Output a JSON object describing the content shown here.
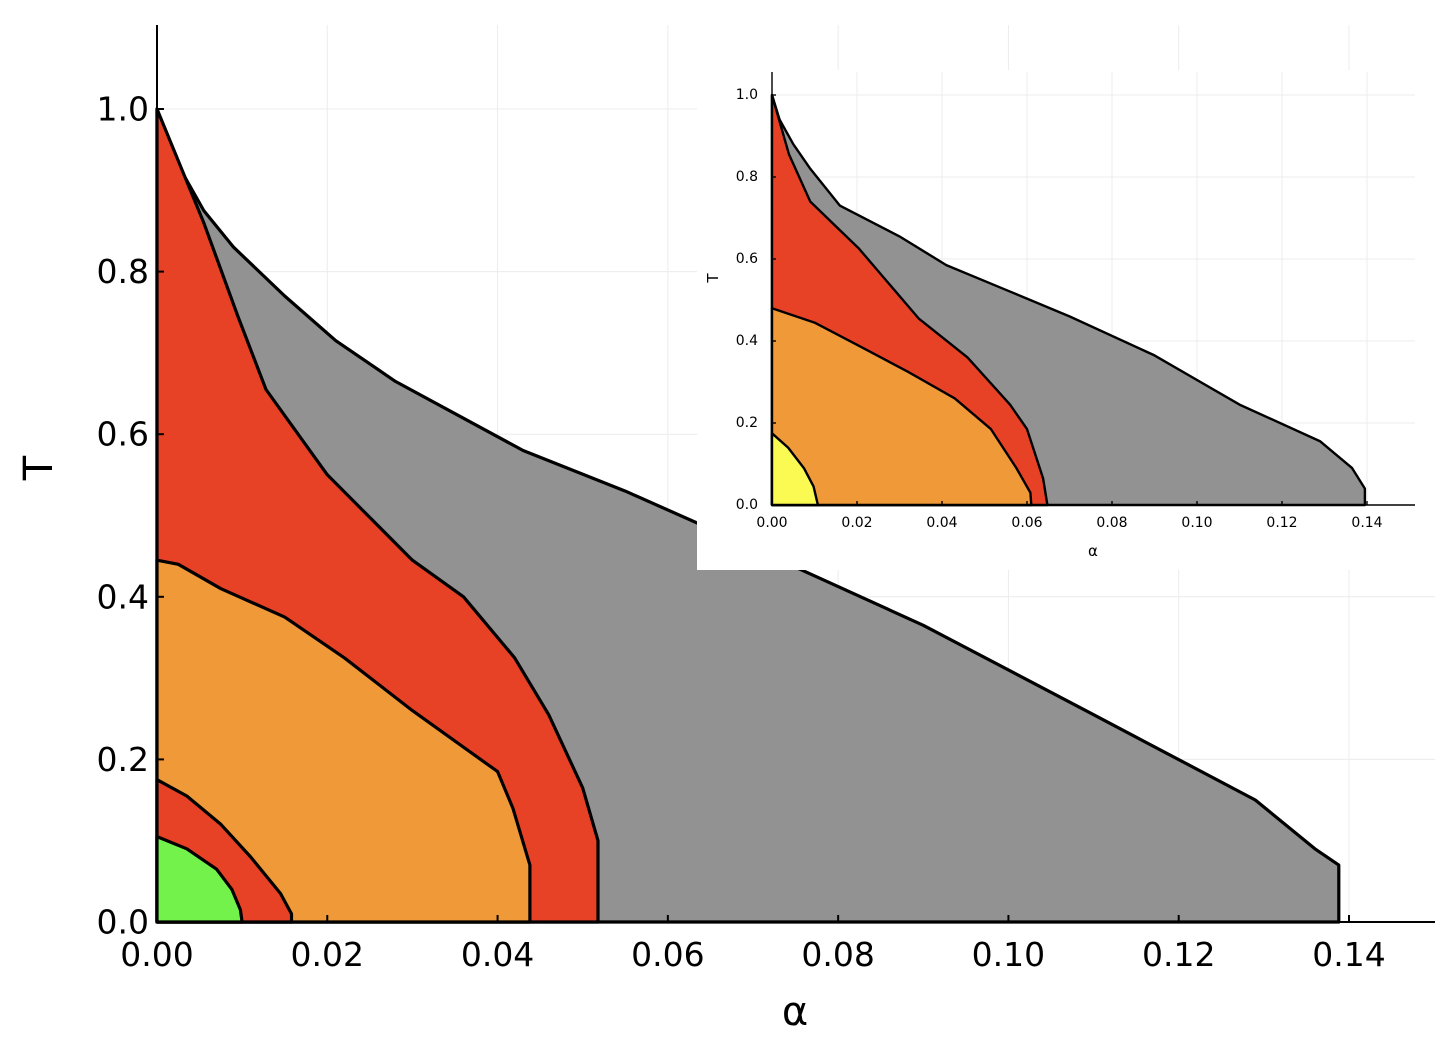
{
  "colors": {
    "gray": "#929292",
    "red": "#e84226",
    "orange": "#ef9939",
    "green": "#72f24a",
    "yellow": "#fafa52",
    "grid": "#ececec",
    "outline": "#000000"
  },
  "chart_data": [
    {
      "id": "main",
      "type": "area",
      "xlabel": "α",
      "ylabel": "T",
      "xlim": [
        0.0,
        0.15
      ],
      "ylim": [
        0.0,
        1.1
      ],
      "xticks": [
        0.0,
        0.02,
        0.04,
        0.06,
        0.08,
        0.1,
        0.12,
        0.14
      ],
      "xtick_labels": [
        "0.00",
        "0.02",
        "0.04",
        "0.06",
        "0.08",
        "0.10",
        "0.12",
        "0.14"
      ],
      "yticks": [
        0.0,
        0.2,
        0.4,
        0.6,
        0.8,
        1.0
      ],
      "ytick_labels": [
        "0.0",
        "0.2",
        "0.4",
        "0.6",
        "0.8",
        "1.0"
      ],
      "grid": true,
      "regions": [
        {
          "name": "gray",
          "color_key": "gray",
          "points": [
            [
              0.0,
              0.0
            ],
            [
              0.0,
              1.0
            ],
            [
              0.002,
              0.94
            ],
            [
              0.0055,
              0.875
            ],
            [
              0.009,
              0.83
            ],
            [
              0.015,
              0.77
            ],
            [
              0.021,
              0.715
            ],
            [
              0.028,
              0.665
            ],
            [
              0.043,
              0.58
            ],
            [
              0.055,
              0.53
            ],
            [
              0.069,
              0.465
            ],
            [
              0.09,
              0.365
            ],
            [
              0.11,
              0.255
            ],
            [
              0.129,
              0.15
            ],
            [
              0.136,
              0.09
            ],
            [
              0.1388,
              0.07
            ],
            [
              0.1388,
              0.0
            ]
          ]
        },
        {
          "name": "red-outer",
          "color_key": "red",
          "points": [
            [
              0.0,
              0.0
            ],
            [
              0.0,
              1.0
            ],
            [
              0.0055,
              0.86
            ],
            [
              0.0095,
              0.745
            ],
            [
              0.0128,
              0.655
            ],
            [
              0.02,
              0.55
            ],
            [
              0.03,
              0.445
            ],
            [
              0.036,
              0.4
            ],
            [
              0.042,
              0.325
            ],
            [
              0.046,
              0.255
            ],
            [
              0.05,
              0.165
            ],
            [
              0.0518,
              0.1
            ],
            [
              0.0518,
              0.0
            ]
          ]
        },
        {
          "name": "orange",
          "color_key": "orange",
          "points": [
            [
              0.0,
              0.0
            ],
            [
              0.0,
              0.445
            ],
            [
              0.0025,
              0.44
            ],
            [
              0.0075,
              0.41
            ],
            [
              0.015,
              0.375
            ],
            [
              0.022,
              0.325
            ],
            [
              0.03,
              0.26
            ],
            [
              0.04,
              0.185
            ],
            [
              0.0418,
              0.14
            ],
            [
              0.0438,
              0.07
            ],
            [
              0.0438,
              0.0
            ]
          ]
        },
        {
          "name": "red-inner",
          "color_key": "red",
          "points": [
            [
              0.0,
              0.0
            ],
            [
              0.0,
              0.175
            ],
            [
              0.0035,
              0.155
            ],
            [
              0.0075,
              0.12
            ],
            [
              0.011,
              0.08
            ],
            [
              0.0145,
              0.035
            ],
            [
              0.0158,
              0.01
            ],
            [
              0.0158,
              0.0
            ]
          ]
        },
        {
          "name": "green",
          "color_key": "green",
          "points": [
            [
              0.0,
              0.0
            ],
            [
              0.0,
              0.105
            ],
            [
              0.0035,
              0.09
            ],
            [
              0.007,
              0.065
            ],
            [
              0.0088,
              0.04
            ],
            [
              0.0098,
              0.015
            ],
            [
              0.01,
              0.0
            ]
          ]
        }
      ]
    },
    {
      "id": "inset",
      "type": "area",
      "xlabel": "α",
      "ylabel": "T",
      "xlim": [
        0.0,
        0.15
      ],
      "ylim": [
        0.0,
        1.05
      ],
      "xticks": [
        0.0,
        0.02,
        0.04,
        0.06,
        0.08,
        0.1,
        0.12,
        0.14
      ],
      "xtick_labels": [
        "0.00",
        "0.02",
        "0.04",
        "0.06",
        "0.08",
        "0.10",
        "0.12",
        "0.14"
      ],
      "yticks": [
        0.0,
        0.2,
        0.4,
        0.6,
        0.8,
        1.0
      ],
      "ytick_labels": [
        "0.0",
        "0.2",
        "0.4",
        "0.6",
        "0.8",
        "1.0"
      ],
      "grid": true,
      "regions": [
        {
          "name": "gray",
          "color_key": "gray",
          "points": [
            [
              0.0,
              0.0
            ],
            [
              0.0,
              1.0
            ],
            [
              0.0018,
              0.94
            ],
            [
              0.005,
              0.88
            ],
            [
              0.009,
              0.82
            ],
            [
              0.016,
              0.73
            ],
            [
              0.03,
              0.655
            ],
            [
              0.041,
              0.585
            ],
            [
              0.055,
              0.525
            ],
            [
              0.07,
              0.46
            ],
            [
              0.09,
              0.365
            ],
            [
              0.11,
              0.245
            ],
            [
              0.129,
              0.155
            ],
            [
              0.1365,
              0.09
            ],
            [
              0.1395,
              0.04
            ],
            [
              0.1395,
              0.0
            ]
          ]
        },
        {
          "name": "red",
          "color_key": "red",
          "points": [
            [
              0.0,
              0.0
            ],
            [
              0.0,
              1.0
            ],
            [
              0.004,
              0.855
            ],
            [
              0.009,
              0.74
            ],
            [
              0.0205,
              0.625
            ],
            [
              0.0345,
              0.455
            ],
            [
              0.046,
              0.36
            ],
            [
              0.056,
              0.245
            ],
            [
              0.06,
              0.185
            ],
            [
              0.0638,
              0.065
            ],
            [
              0.0648,
              0.0
            ]
          ]
        },
        {
          "name": "orange",
          "color_key": "orange",
          "points": [
            [
              0.0,
              0.0
            ],
            [
              0.0,
              0.48
            ],
            [
              0.01,
              0.445
            ],
            [
              0.021,
              0.385
            ],
            [
              0.032,
              0.325
            ],
            [
              0.043,
              0.26
            ],
            [
              0.0515,
              0.185
            ],
            [
              0.0575,
              0.09
            ],
            [
              0.0608,
              0.03
            ],
            [
              0.061,
              0.0
            ]
          ]
        },
        {
          "name": "yellow",
          "color_key": "yellow",
          "points": [
            [
              0.0,
              0.0
            ],
            [
              0.0,
              0.175
            ],
            [
              0.0038,
              0.14
            ],
            [
              0.0075,
              0.09
            ],
            [
              0.0098,
              0.045
            ],
            [
              0.0108,
              0.0
            ]
          ]
        }
      ]
    }
  ]
}
